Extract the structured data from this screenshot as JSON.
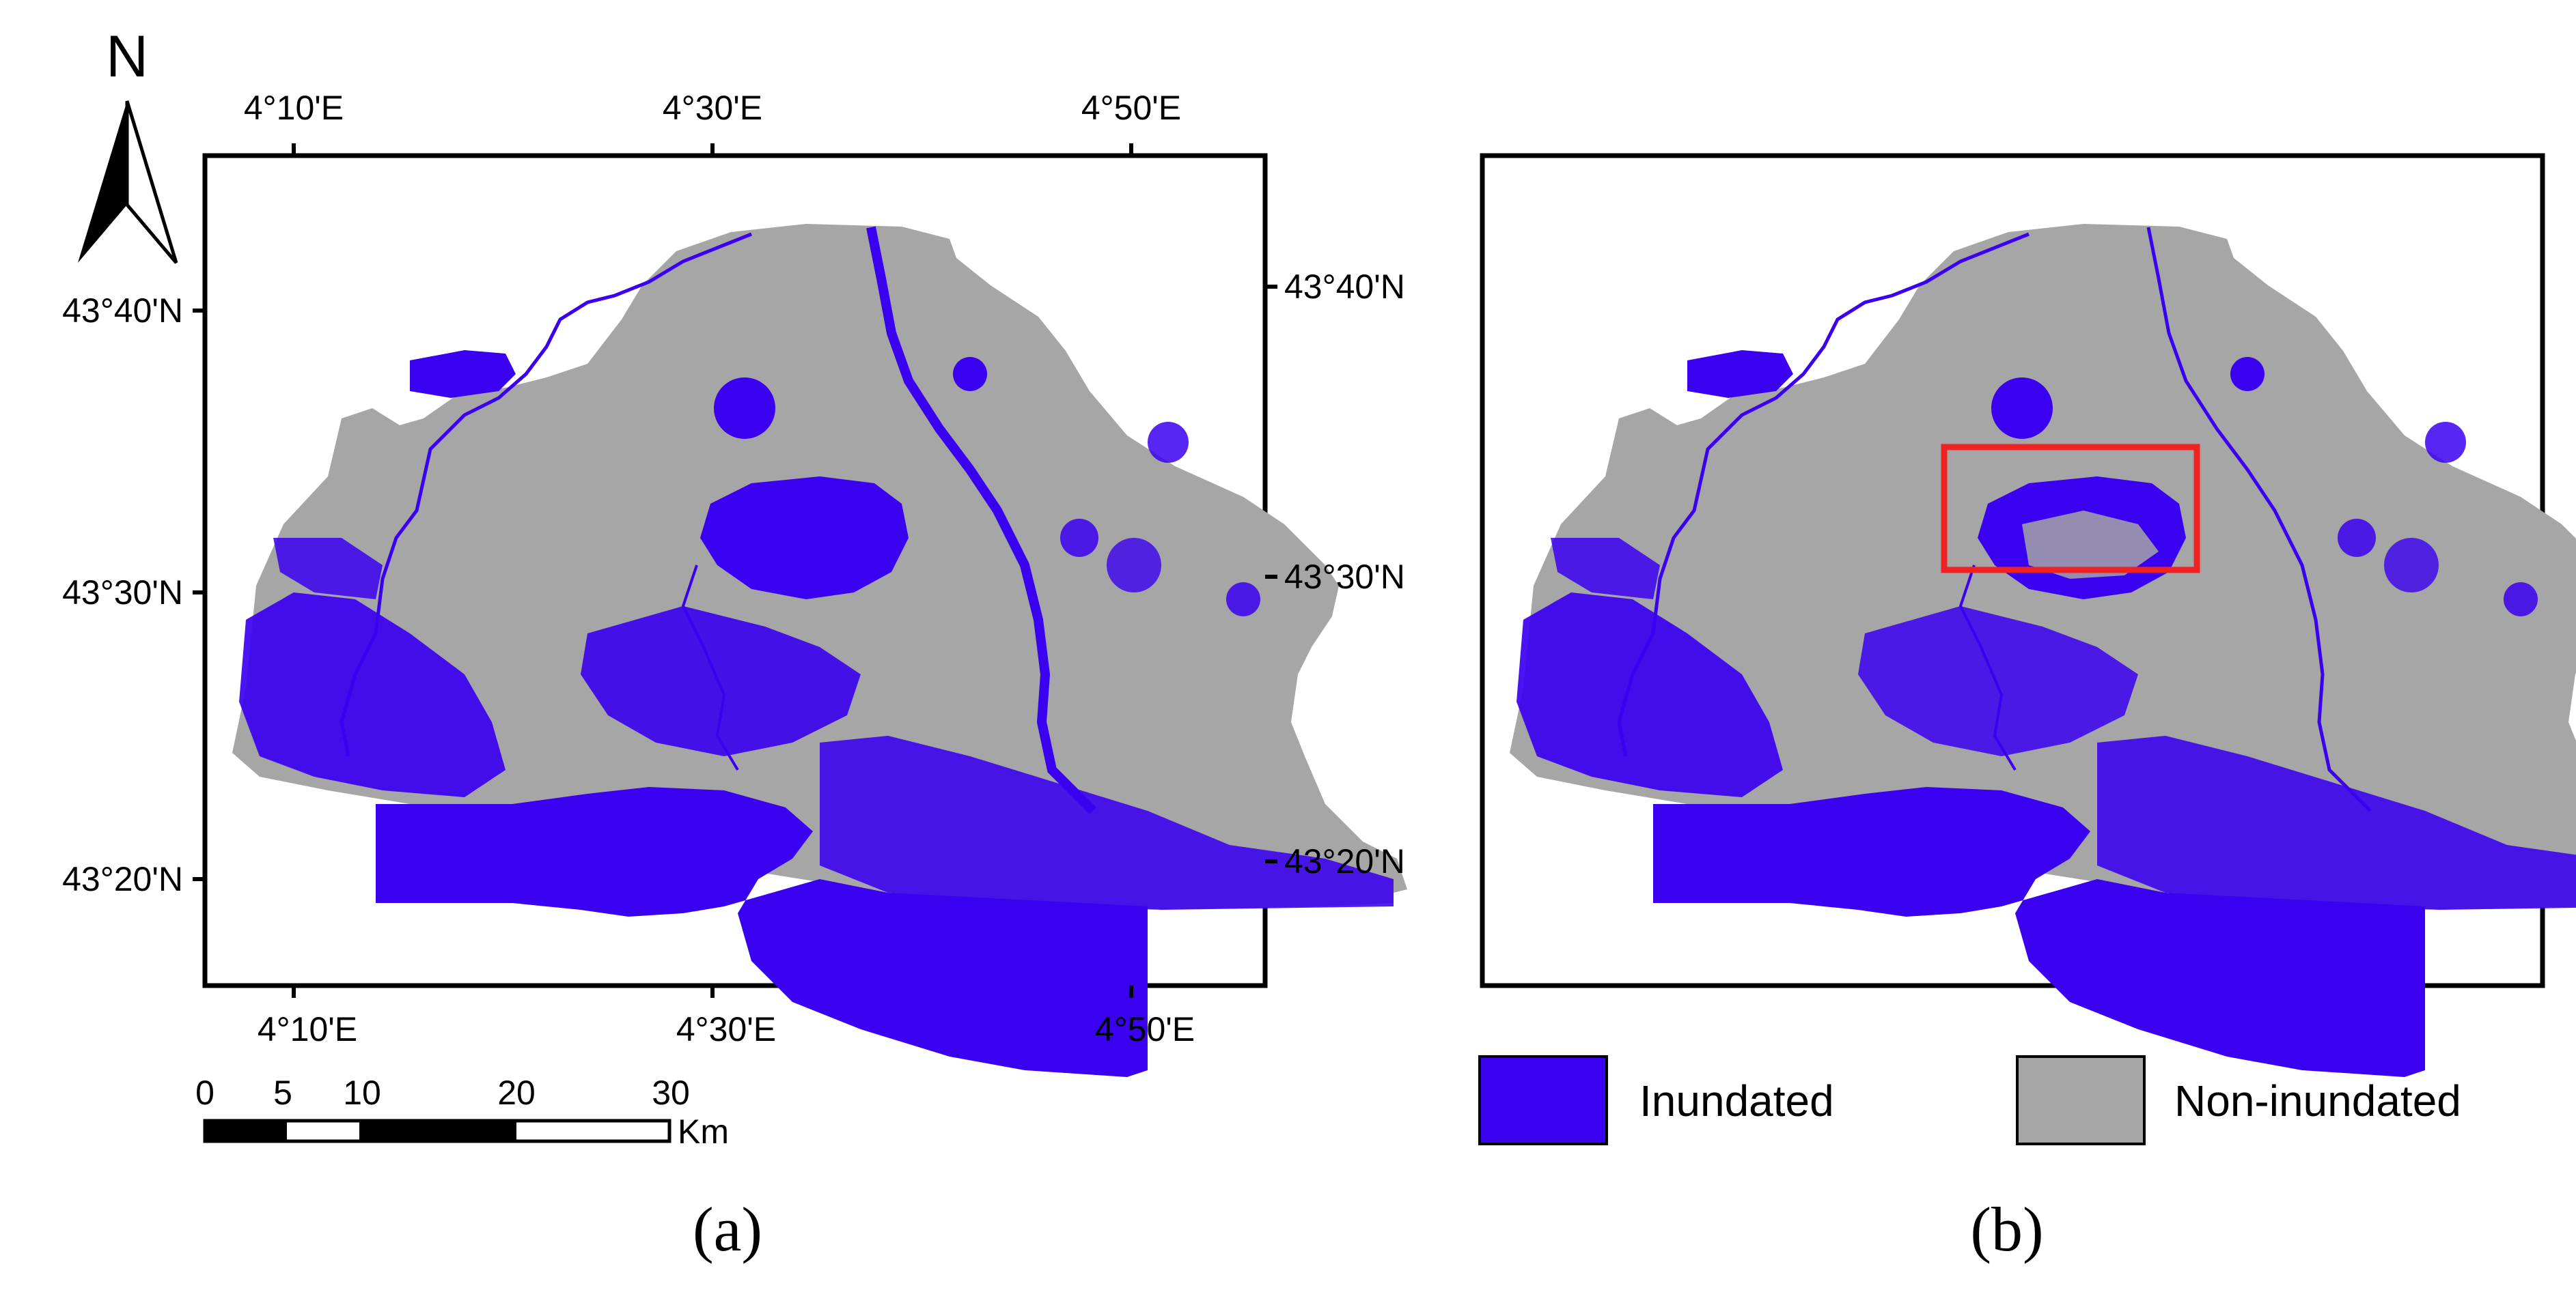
{
  "north_arrow": {
    "letter": "N"
  },
  "map_a": {
    "panel_label": "(a)",
    "top_ticks": [
      "4°10'E",
      "4°30'E",
      "4°50'E"
    ],
    "bottom_ticks": [
      "4°10'E",
      "4°30'E",
      "4°50'E"
    ],
    "left_ticks": [
      "43°40'N",
      "43°30'N",
      "43°20'N"
    ],
    "right_ticks": [
      "43°40'N",
      "43°30'N",
      "43°20'N"
    ]
  },
  "map_b": {
    "panel_label": "(b)",
    "highlight_color": "#ee2222"
  },
  "scale_bar": {
    "labels": [
      "0",
      "5",
      "10",
      "20",
      "30"
    ],
    "unit": "Km"
  },
  "legend": {
    "items": [
      {
        "label": "Inundated",
        "color": "#3a00f0"
      },
      {
        "label": "Non-inundated",
        "color": "#a6a6a6"
      }
    ]
  },
  "colors": {
    "inundated": "#3a00f0",
    "non_inundated": "#a6a6a6",
    "frame": "#000000"
  }
}
